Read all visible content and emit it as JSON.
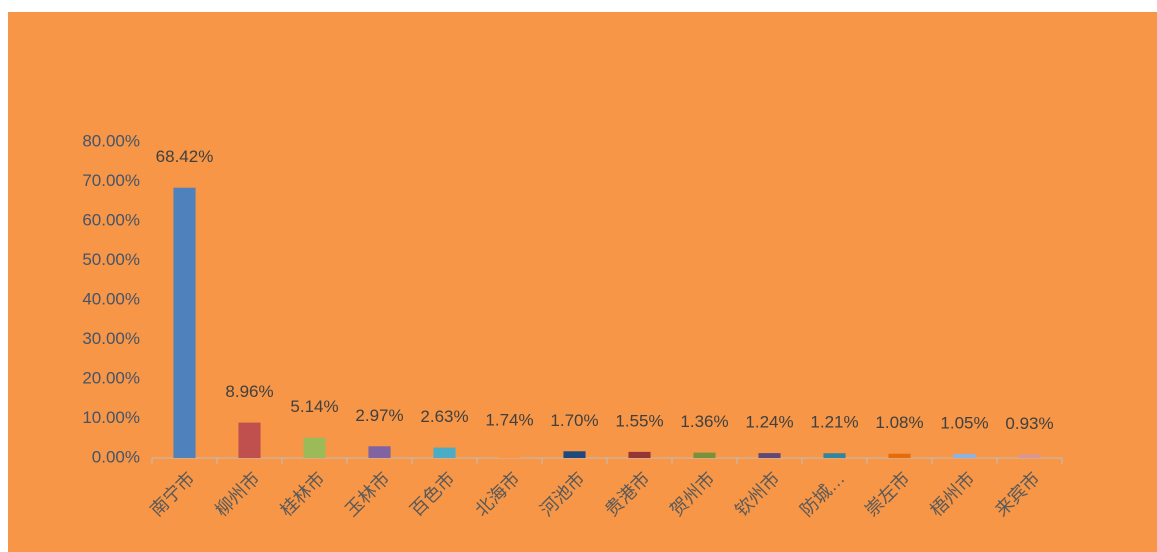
{
  "chart_data": {
    "type": "bar",
    "categories": [
      "南宁市",
      "柳州市",
      "桂林市",
      "玉林市",
      "百色市",
      "北海市",
      "河池市",
      "贵港市",
      "贺州市",
      "钦州市",
      "防城…",
      "崇左市",
      "梧州市",
      "来宾市"
    ],
    "values": [
      68.42,
      8.96,
      5.14,
      2.97,
      2.63,
      1.74,
      1.7,
      1.55,
      1.36,
      1.24,
      1.21,
      1.08,
      1.05,
      0.93
    ],
    "value_labels": [
      "68.42%",
      "8.96%",
      "5.14%",
      "2.97%",
      "2.63%",
      "1.74%",
      "1.70%",
      "1.55%",
      "1.36%",
      "1.24%",
      "1.21%",
      "1.08%",
      "1.05%",
      "0.93%"
    ],
    "colors": [
      "#4f81bd",
      "#c0504d",
      "#9bbb59",
      "#8064a2",
      "#4bacc6",
      "#f79646",
      "#1f497d",
      "#943634",
      "#76923c",
      "#5f497a",
      "#31859c",
      "#e46c0a",
      "#8db3e2",
      "#d99694"
    ],
    "ylim": [
      0,
      80
    ],
    "yticks": [
      {
        "value": 0,
        "label": "0.00%"
      },
      {
        "value": 10,
        "label": "10.00%"
      },
      {
        "value": 20,
        "label": "20.00%"
      },
      {
        "value": 30,
        "label": "30.00%"
      },
      {
        "value": 40,
        "label": "40.00%"
      },
      {
        "value": 50,
        "label": "50.00%"
      },
      {
        "value": 60,
        "label": "60.00%"
      },
      {
        "value": 70,
        "label": "70.00%"
      },
      {
        "value": 80,
        "label": "80.00%"
      }
    ]
  }
}
